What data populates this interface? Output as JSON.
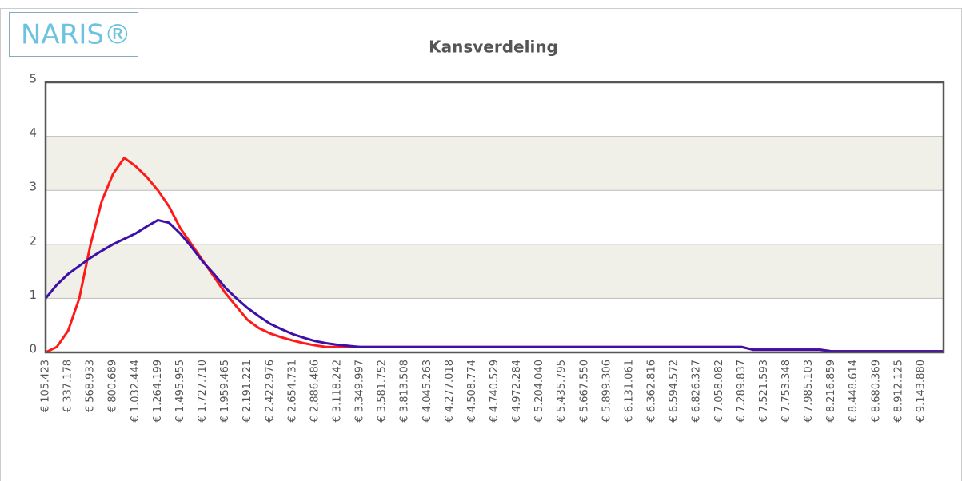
{
  "logo": "NARIS®",
  "chart_data": {
    "type": "line",
    "title": "Kansverdeling",
    "categories": [
      "€ 105.423",
      null,
      "€ 337.178",
      null,
      "€ 568.933",
      null,
      "€ 800.689",
      null,
      "€ 1.032.444",
      null,
      "€ 1.264.199",
      null,
      "€ 1.495.955",
      null,
      "€ 1.727.710",
      null,
      "€ 1.959.465",
      null,
      "€ 2.191.221",
      null,
      "€ 2.422.976",
      null,
      "€ 2.654.731",
      null,
      "€ 2.886.486",
      null,
      "€ 3.118.242",
      null,
      "€ 3.349.997",
      null,
      "€ 3.581.752",
      null,
      "€ 3.813.508",
      null,
      "€ 4.045.263",
      null,
      "€ 4.277.018",
      null,
      "€ 4.508.774",
      null,
      "€ 4.740.529",
      null,
      "€ 4.972.284",
      null,
      "€ 5.204.040",
      null,
      "€ 5.435.795",
      null,
      "€ 5.667.550",
      null,
      "€ 5.899.306",
      null,
      "€ 6.131.061",
      null,
      "€ 6.362.816",
      null,
      "€ 6.594.572",
      null,
      "€ 6.826.327",
      null,
      "€ 7.058.082",
      null,
      "€ 7.289.837",
      null,
      "€ 7.521.593",
      null,
      "€ 7.753.348",
      null,
      "€ 7.985.103",
      null,
      "€ 8.216.859",
      null,
      "€ 8.448.614",
      null,
      "€ 8.680.369",
      null,
      "€ 8.912.125",
      null,
      "€ 9.143.880",
      null,
      null
    ],
    "series": [
      {
        "color": "#ff1a1a",
        "values": [
          0,
          0.1,
          0.4,
          1.0,
          2.0,
          2.8,
          3.3,
          3.6,
          3.45,
          3.25,
          3.0,
          2.7,
          2.3,
          2.0,
          1.7,
          1.4,
          1.1,
          0.85,
          0.6,
          0.45,
          0.35,
          0.28,
          0.22,
          0.17,
          0.13,
          0.1,
          0.1,
          0.1,
          0.1,
          0.1,
          0.1,
          0.1,
          0.1,
          0.1,
          0.1,
          0.1,
          0.1,
          0.1,
          0.1,
          0.1,
          0.1,
          0.1,
          0.1,
          0.1,
          0.1,
          0.1,
          0.1,
          0.1,
          0.1,
          0.1,
          0.1,
          0.1,
          0.1,
          0.1,
          0.1,
          0.1,
          0.1,
          0.1,
          0.1,
          0.1,
          0.1,
          0.1,
          0.1,
          0.05,
          0.05,
          0.05,
          0.05,
          0.05,
          0.05,
          0.05,
          0.02,
          0.02,
          0.02,
          0.02,
          0.02,
          0.02,
          0.02,
          0.02,
          0.02,
          0.02,
          0.02
        ]
      },
      {
        "color": "#3d10a8",
        "values": [
          1.0,
          1.25,
          1.45,
          1.6,
          1.75,
          1.88,
          2.0,
          2.1,
          2.2,
          2.33,
          2.45,
          2.4,
          2.2,
          1.95,
          1.68,
          1.45,
          1.2,
          1.0,
          0.82,
          0.67,
          0.53,
          0.43,
          0.34,
          0.27,
          0.21,
          0.17,
          0.14,
          0.12,
          0.1,
          0.1,
          0.1,
          0.1,
          0.1,
          0.1,
          0.1,
          0.1,
          0.1,
          0.1,
          0.1,
          0.1,
          0.1,
          0.1,
          0.1,
          0.1,
          0.1,
          0.1,
          0.1,
          0.1,
          0.1,
          0.1,
          0.1,
          0.1,
          0.1,
          0.1,
          0.1,
          0.1,
          0.1,
          0.1,
          0.1,
          0.1,
          0.1,
          0.1,
          0.1,
          0.05,
          0.05,
          0.05,
          0.05,
          0.05,
          0.05,
          0.05,
          0.02,
          0.02,
          0.02,
          0.02,
          0.02,
          0.02,
          0.02,
          0.02,
          0.02,
          0.02,
          0.02
        ]
      }
    ],
    "ylim": [
      0,
      5
    ],
    "yticks": [
      0,
      1,
      2,
      3,
      4,
      5
    ],
    "grid": true
  }
}
